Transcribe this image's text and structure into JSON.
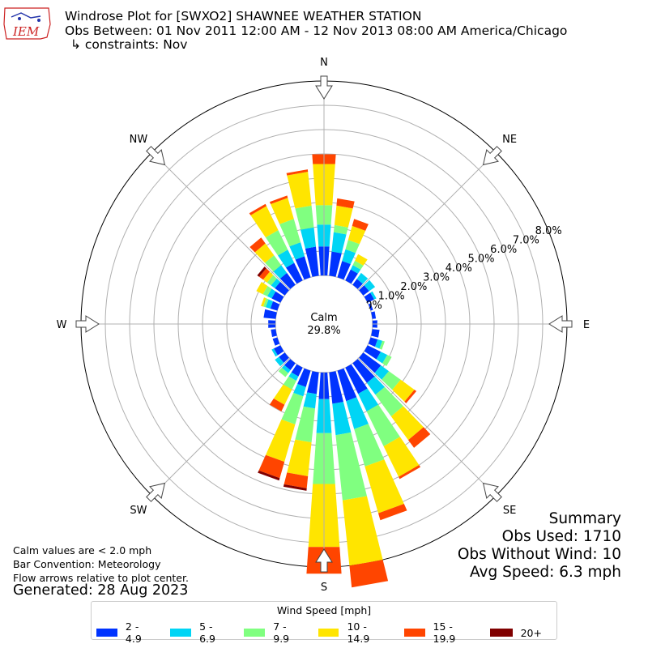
{
  "logo_text": "IEM",
  "title_lines": [
    "Windrose Plot for [SWXO2] SHAWNEE WEATHER STATION",
    "Obs Between: 01 Nov 2011 12:00 AM - 12 Nov 2013 08:00 AM America/Chicago",
    "↳ constraints: Nov"
  ],
  "notes": [
    "Calm values are < 2.0 mph",
    "Bar Convention: Meteorology",
    "Flow arrows relative to plot center."
  ],
  "generated": "Generated: 28 Aug 2023",
  "summary": {
    "heading": "Summary",
    "obs_used": "Obs Used: 1710",
    "obs_without_wind": "Obs Without Wind: 10",
    "avg_speed": "Avg Speed: 6.3 mph"
  },
  "calm": {
    "label": "Calm",
    "value": "29.8%"
  },
  "colors": {
    "axis": "#000000",
    "grid": "#b0b0b0",
    "arrow_fill": "#ffffff",
    "arrow_stroke": "#444444"
  },
  "chart_data": {
    "type": "windrose",
    "direction_labels": [
      "N",
      "NE",
      "E",
      "SE",
      "S",
      "SW",
      "W",
      "NW"
    ],
    "radial_ticks": [
      "0.0%",
      "1.0%",
      "2.0%",
      "3.0%",
      "4.0%",
      "5.0%",
      "6.0%",
      "7.0%",
      "8.0%"
    ],
    "radial_range": [
      -2,
      8
    ],
    "calm_percent": 29.8,
    "legend": {
      "title": "Wind Speed [mph]",
      "bins": [
        {
          "label": "2 - 4.9",
          "color": "#0033ff"
        },
        {
          "label": "5 - 6.9",
          "color": "#00d5f5"
        },
        {
          "label": "7 - 9.9",
          "color": "#80ff80"
        },
        {
          "label": "10 - 14.9",
          "color": "#ffe500"
        },
        {
          "label": "15 - 19.9",
          "color": "#ff4500"
        },
        {
          "label": "20+",
          "color": "#800000"
        }
      ]
    },
    "sectors": [
      {
        "dir": 0,
        "values": [
          1.2,
          0.9,
          0.8,
          1.7,
          0.4,
          0.0
        ]
      },
      {
        "dir": 10,
        "values": [
          1.0,
          0.8,
          0.3,
          0.8,
          0.3,
          0.0
        ]
      },
      {
        "dir": 20,
        "values": [
          0.7,
          0.5,
          0.4,
          0.6,
          0.3,
          0.0
        ]
      },
      {
        "dir": 30,
        "values": [
          0.5,
          0.2,
          0.2,
          0.3,
          0.0,
          0.0
        ]
      },
      {
        "dir": 40,
        "values": [
          0.3,
          0.3,
          0.0,
          0.0,
          0.0,
          0.0
        ]
      },
      {
        "dir": 50,
        "values": [
          0.3,
          0.3,
          0.0,
          0.0,
          0.0,
          0.0
        ]
      },
      {
        "dir": 60,
        "values": [
          0.3,
          0.1,
          0.0,
          0.0,
          0.0,
          0.0
        ]
      },
      {
        "dir": 70,
        "values": [
          0.1,
          0.0,
          0.0,
          0.0,
          0.0,
          0.0
        ]
      },
      {
        "dir": 80,
        "values": [
          0.15,
          0.0,
          0.0,
          0.0,
          0.0,
          0.0
        ]
      },
      {
        "dir": 90,
        "values": [
          0.2,
          0.0,
          0.0,
          0.0,
          0.0,
          0.0
        ]
      },
      {
        "dir": 100,
        "values": [
          0.3,
          0.0,
          0.0,
          0.0,
          0.0,
          0.0
        ]
      },
      {
        "dir": 110,
        "values": [
          0.3,
          0.2,
          0.1,
          0.0,
          0.0,
          0.0
        ]
      },
      {
        "dir": 120,
        "values": [
          0.6,
          0.3,
          0.2,
          0.0,
          0.0,
          0.0
        ]
      },
      {
        "dir": 130,
        "values": [
          0.9,
          0.4,
          0.6,
          0.7,
          0.1,
          0.0
        ]
      },
      {
        "dir": 140,
        "values": [
          1.0,
          0.6,
          1.1,
          1.2,
          0.4,
          0.0
        ]
      },
      {
        "dir": 150,
        "values": [
          1.2,
          0.8,
          1.6,
          1.4,
          0.1,
          0.0
        ]
      },
      {
        "dir": 160,
        "values": [
          1.3,
          1.2,
          1.6,
          2.0,
          0.3,
          0.0
        ]
      },
      {
        "dir": 170,
        "values": [
          1.3,
          1.3,
          2.7,
          2.7,
          0.9,
          0.0
        ]
      },
      {
        "dir": 180,
        "values": [
          1.1,
          1.4,
          2.1,
          2.6,
          1.1,
          0.0
        ]
      },
      {
        "dir": 190,
        "values": [
          0.9,
          0.6,
          1.4,
          1.4,
          0.5,
          0.1
        ]
      },
      {
        "dir": 200,
        "values": [
          0.7,
          0.4,
          1.2,
          1.6,
          0.7,
          0.1
        ]
      },
      {
        "dir": 210,
        "values": [
          0.4,
          0.2,
          0.4,
          0.7,
          0.3,
          0.0
        ]
      },
      {
        "dir": 220,
        "values": [
          0.35,
          0.15,
          0.2,
          0.0,
          0.0,
          0.0
        ]
      },
      {
        "dir": 230,
        "values": [
          0.3,
          0.2,
          0.0,
          0.0,
          0.0,
          0.0
        ]
      },
      {
        "dir": 240,
        "values": [
          0.3,
          0.1,
          0.0,
          0.0,
          0.0,
          0.0
        ]
      },
      {
        "dir": 250,
        "values": [
          0.2,
          0.0,
          0.0,
          0.0,
          0.0,
          0.0
        ]
      },
      {
        "dir": 260,
        "values": [
          0.2,
          0.0,
          0.0,
          0.0,
          0.0,
          0.0
        ]
      },
      {
        "dir": 270,
        "values": [
          0.3,
          0.0,
          0.0,
          0.0,
          0.0,
          0.0
        ]
      },
      {
        "dir": 280,
        "values": [
          0.5,
          0.0,
          0.0,
          0.0,
          0.0,
          0.0
        ]
      },
      {
        "dir": 290,
        "values": [
          0.3,
          0.2,
          0.1,
          0.1,
          0.0,
          0.0
        ]
      },
      {
        "dir": 300,
        "values": [
          0.4,
          0.2,
          0.2,
          0.3,
          0.0,
          0.0
        ]
      },
      {
        "dir": 310,
        "values": [
          0.5,
          0.2,
          0.2,
          0.2,
          0.2,
          0.1
        ]
      },
      {
        "dir": 320,
        "values": [
          0.6,
          0.4,
          0.5,
          0.6,
          0.3,
          0.0
        ]
      },
      {
        "dir": 330,
        "values": [
          0.8,
          0.6,
          0.9,
          1.1,
          0.1,
          0.0
        ]
      },
      {
        "dir": 340,
        "values": [
          0.9,
          0.6,
          1.0,
          0.9,
          0.1,
          0.0
        ]
      },
      {
        "dir": 350,
        "values": [
          1.2,
          0.8,
          0.9,
          1.4,
          0.1,
          0.0
        ]
      }
    ]
  }
}
